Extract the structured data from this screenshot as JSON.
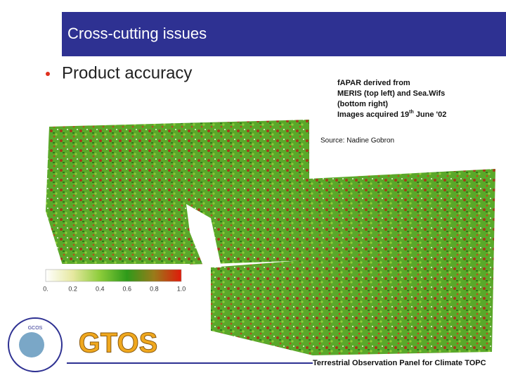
{
  "header": {
    "title": "Cross-cutting issues"
  },
  "bullets": [
    "Product accuracy"
  ],
  "caption": {
    "lines": [
      "fAPAR derived from",
      "MERIS (top left) and Sea.Wifs",
      "(bottom right)"
    ],
    "date_line": {
      "before": "Images acquired 19",
      "superscript": "th",
      "after": " June '02"
    },
    "source": "Source: Nadine Gobron"
  },
  "colorbar": {
    "labels": [
      "0.",
      "0.2",
      "0.4",
      "0.6",
      "0.8",
      "1.0"
    ]
  },
  "logos": {
    "gtos": "GTOS",
    "gcos": "GCOS"
  },
  "footer": {
    "text": "Terrestrial Observation Panel for Climate TOPC"
  }
}
